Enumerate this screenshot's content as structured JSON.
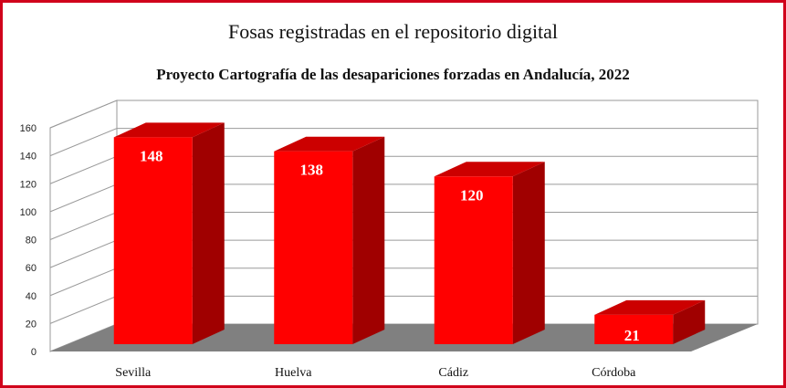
{
  "colors": {
    "border": "#d0021b",
    "bar_front": "#ff0000",
    "bar_side": "#a00000",
    "bar_top": "#cc0000",
    "floor": "#808080"
  },
  "chart_data": {
    "type": "bar",
    "title": "Fosas registradas en el repositorio digital",
    "subtitle": "Proyecto Cartografía de las desapariciones forzadas en Andalucía, 2022",
    "categories": [
      "Sevilla",
      "Huelva",
      "Cádiz",
      "Córdoba"
    ],
    "values": [
      148,
      138,
      120,
      21
    ],
    "yticks": [
      "0",
      "20",
      "40",
      "60",
      "80",
      "100",
      "120",
      "140",
      "160"
    ],
    "ylim": [
      0,
      160
    ],
    "grid": true,
    "style": "3d"
  }
}
